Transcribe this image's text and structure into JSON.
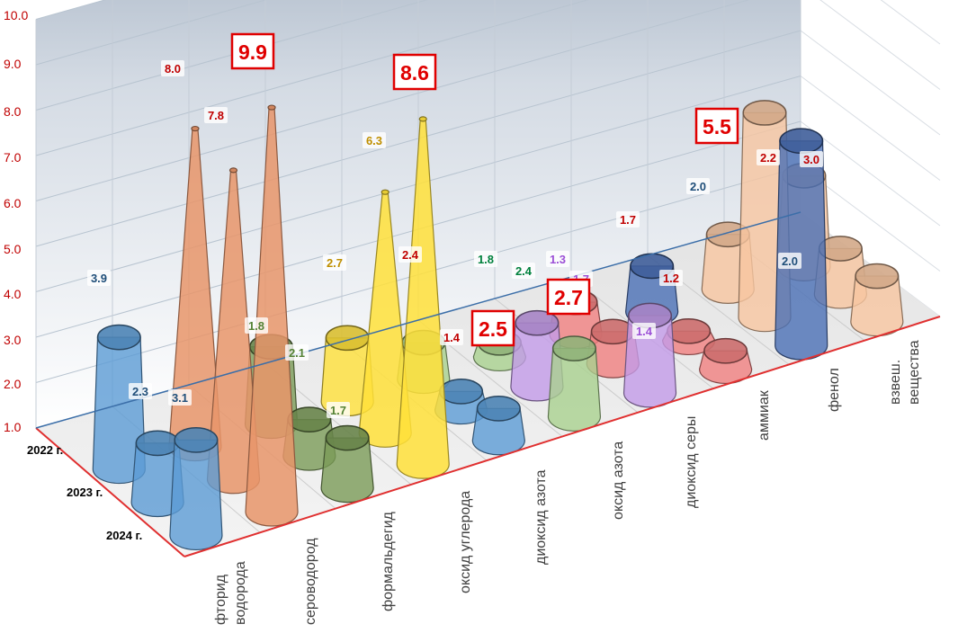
{
  "chart_data": {
    "type": "bar",
    "variant": "3d-cone-cylinder",
    "ylim": [
      1.0,
      10.0
    ],
    "y_ticks": [
      "1.0",
      "2.0",
      "3.0",
      "4.0",
      "5.0",
      "6.0",
      "7.0",
      "8.0",
      "9.0",
      "10.0"
    ],
    "grid": true,
    "categories": [
      [
        "фторид",
        "водорода"
      ],
      [
        "сероводород"
      ],
      [
        "формальдегид"
      ],
      [
        "оксид углерода"
      ],
      [
        "диоксид азота"
      ],
      [
        "оксид азота"
      ],
      [
        "диоксид серы"
      ],
      [
        "аммиак"
      ],
      [
        "фенол"
      ],
      [
        "взвеш.",
        "вещества"
      ]
    ],
    "series": [
      {
        "name": "2022 г.",
        "values": [
          3.9,
          8.0,
          2.7,
          2.4,
          1.8,
          1.3,
          1.7,
          2.0,
          2.2,
          3.0
        ]
      },
      {
        "name": "2023 г.",
        "values": [
          2.3,
          7.8,
          1.8,
          6.3,
          1.4,
          2.4,
          1.7,
          1.2,
          5.5,
          2.0
        ]
      },
      {
        "name": "2024 г.",
        "values": [
          3.1,
          9.9,
          2.1,
          8.6,
          1.7,
          2.5,
          2.7,
          1.4,
          5.5,
          2.0
        ]
      }
    ],
    "data_labels": [
      {
        "text": "3.9",
        "color": "#1f4e79"
      },
      {
        "text": "2.3",
        "color": "#1f4e79"
      },
      {
        "text": "3.1",
        "color": "#1f4e79"
      },
      {
        "text": "8.0",
        "color": "#c00000"
      },
      {
        "text": "7.8",
        "color": "#c00000"
      },
      {
        "text": "1.8",
        "color": "#548235"
      },
      {
        "text": "2.1",
        "color": "#548235"
      },
      {
        "text": "1.7",
        "color": "#548235"
      },
      {
        "text": "2.7",
        "color": "#bf8f00"
      },
      {
        "text": "6.3",
        "color": "#bf8f00"
      },
      {
        "text": "2.4",
        "color": "#c00000"
      },
      {
        "text": "1.8",
        "color": "#00803c"
      },
      {
        "text": "2.4",
        "color": "#00803c"
      },
      {
        "text": "1.4",
        "color": "#c00000"
      },
      {
        "text": "1.3",
        "color": "#9b4fd6"
      },
      {
        "text": "1.7",
        "color": "#9b4fd6"
      },
      {
        "text": "1.4",
        "color": "#9b4fd6"
      },
      {
        "text": "1.7",
        "color": "#c00000"
      },
      {
        "text": "1.2",
        "color": "#c00000"
      },
      {
        "text": "2.0",
        "color": "#1f4e79"
      },
      {
        "text": "2.0",
        "color": "#1f4e79"
      },
      {
        "text": "2.2",
        "color": "#c00000"
      },
      {
        "text": "3.0",
        "color": "#c00000"
      }
    ],
    "highlights": [
      "9.9",
      "8.6",
      "2.5",
      "2.7",
      "5.5"
    ],
    "colors": {
      "axis_line": "#e03030",
      "tick_text": "#c00000",
      "highlight": "#e00000",
      "blue": "#5b9bd5",
      "orange": "#e8956a",
      "green": "#7a9b57",
      "yellow": "#ffe13a",
      "light_green": "#a9d18e",
      "violet": "#c39be8",
      "red": "#f08080",
      "dark_blue": "#4a6fb5",
      "peach": "#f8c6a0"
    }
  }
}
